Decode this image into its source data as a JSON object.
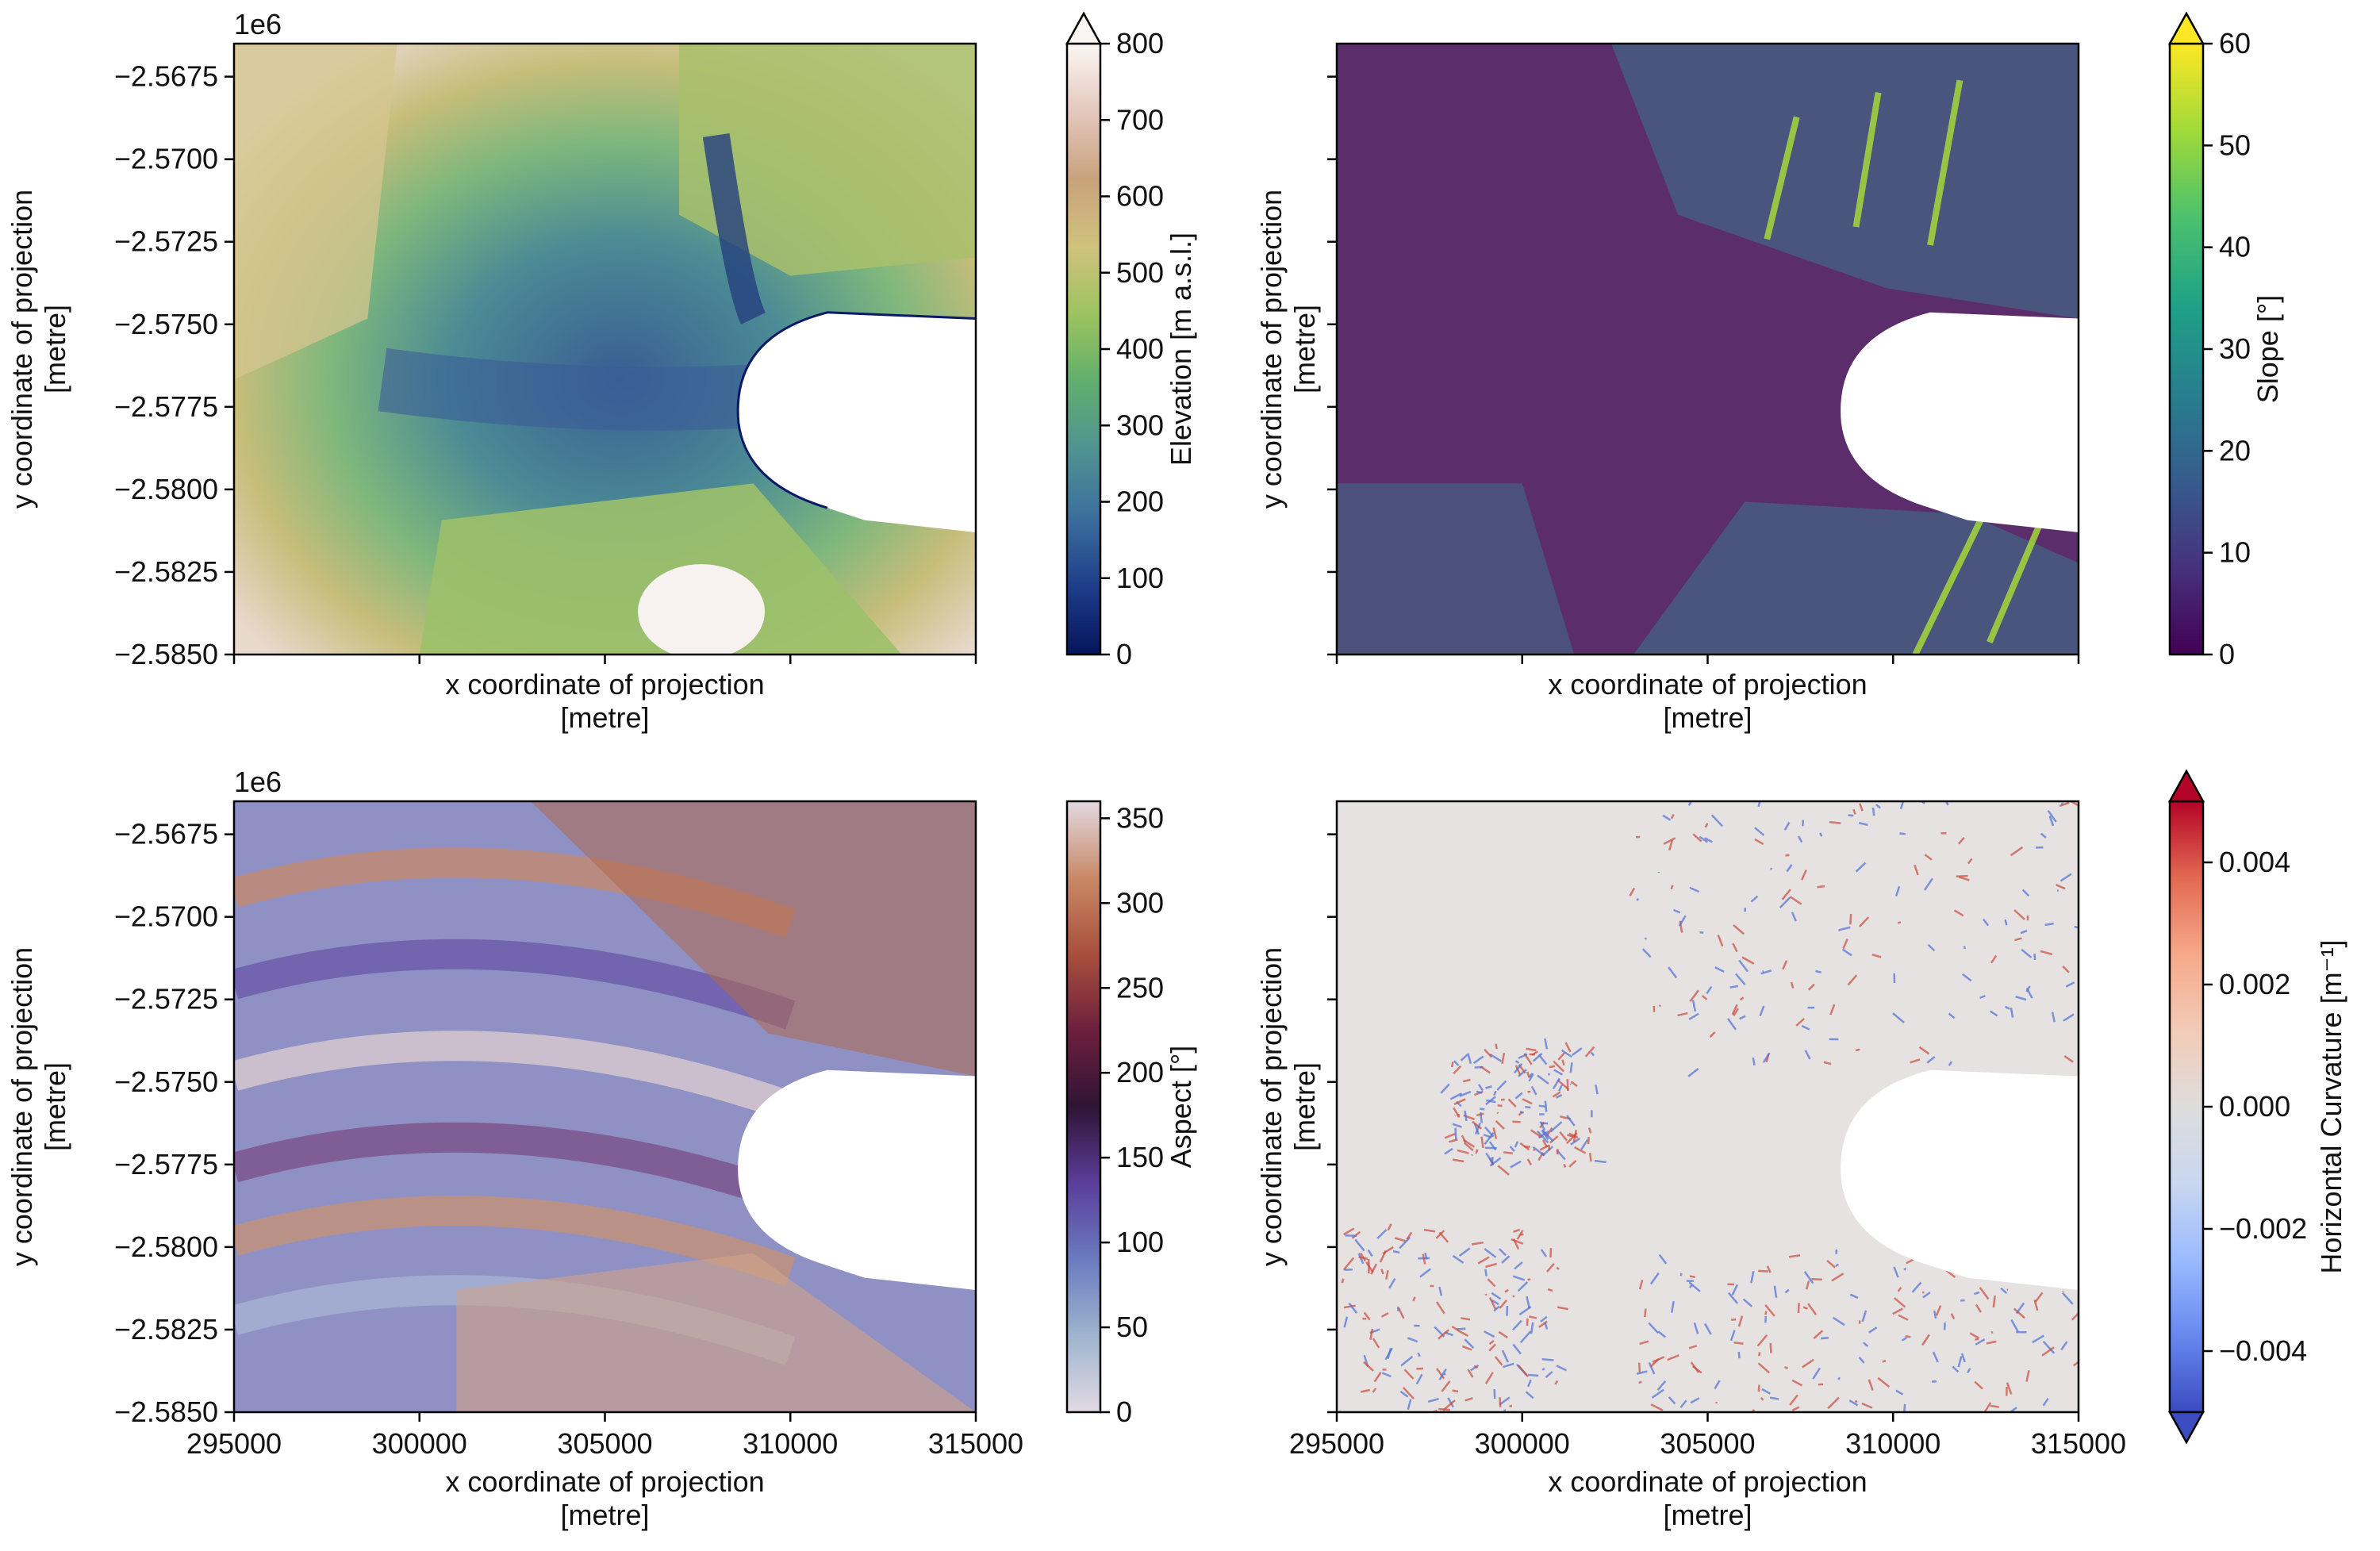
{
  "figure": {
    "exponent_label": "1e6"
  },
  "chart_data": [
    {
      "type": "heatmap",
      "name": "elevation",
      "panel": "top-left",
      "xlabel": "x coordinate of projection\n[metre]",
      "ylabel": "y coordinate of projection\n[metre]",
      "xlim": [
        295000,
        315000
      ],
      "ylim": [
        -2585000,
        -2566500
      ],
      "xticks": [
        295000,
        300000,
        305000,
        310000,
        315000
      ],
      "xtick_labels_visible": false,
      "yticks": [
        -2585000,
        -2582500,
        -2580000,
        -2577500,
        -2575000,
        -2572500,
        -2570000,
        -2567500
      ],
      "ytick_labels": [
        "−2.5850",
        "−2.5825",
        "−2.5800",
        "−2.5775",
        "−2.5750",
        "−2.5725",
        "−2.5700",
        "−2.5675"
      ],
      "ytick_labels_visible": true,
      "offset_label": "1e6",
      "colorbar": {
        "label": "Elevation [m a.s.l.]",
        "range": [
          0,
          800
        ],
        "ticks": [
          0,
          100,
          200,
          300,
          400,
          500,
          600,
          700,
          800
        ],
        "extend": "max",
        "colors": [
          "#05155c",
          "#1e3d8a",
          "#3c6e9c",
          "#4f9293",
          "#5fae6e",
          "#9cc35f",
          "#d0c27c",
          "#c9a27c",
          "#e4c8bd",
          "#fbf6f4"
        ]
      }
    },
    {
      "type": "heatmap",
      "name": "slope",
      "panel": "top-right",
      "xlabel": "x coordinate of projection\n[metre]",
      "ylabel": "y coordinate of projection\n[metre]",
      "xlim": [
        295000,
        315000
      ],
      "ylim": [
        -2585000,
        -2566500
      ],
      "xticks": [
        295000,
        300000,
        305000,
        310000,
        315000
      ],
      "xtick_labels_visible": false,
      "yticks": [
        -2585000,
        -2582500,
        -2580000,
        -2577500,
        -2575000,
        -2572500,
        -2570000,
        -2567500
      ],
      "ytick_labels_visible": false,
      "colorbar": {
        "label": "Slope [°]",
        "range": [
          0,
          60
        ],
        "ticks": [
          0,
          10,
          20,
          30,
          40,
          50,
          60
        ],
        "extend": "max",
        "colors": [
          "#440154",
          "#46327e",
          "#365c8d",
          "#277f8e",
          "#1fa187",
          "#4ac16d",
          "#a0da39",
          "#fde725"
        ]
      }
    },
    {
      "type": "heatmap",
      "name": "aspect",
      "panel": "bottom-left",
      "xlabel": "x coordinate of projection\n[metre]",
      "ylabel": "y coordinate of projection\n[metre]",
      "xlim": [
        295000,
        315000
      ],
      "ylim": [
        -2585000,
        -2566500
      ],
      "xticks": [
        295000,
        300000,
        305000,
        310000,
        315000
      ],
      "xtick_labels": [
        "295000",
        "300000",
        "305000",
        "310000",
        "315000"
      ],
      "xtick_labels_visible": true,
      "yticks": [
        -2585000,
        -2582500,
        -2580000,
        -2577500,
        -2575000,
        -2572500,
        -2570000,
        -2567500
      ],
      "ytick_labels": [
        "−2.5850",
        "−2.5825",
        "−2.5800",
        "−2.5775",
        "−2.5750",
        "−2.5725",
        "−2.5700",
        "−2.5675"
      ],
      "ytick_labels_visible": true,
      "offset_label": "1e6",
      "colorbar": {
        "label": "Aspect [°]",
        "range": [
          0,
          360
        ],
        "ticks": [
          0,
          50,
          100,
          150,
          200,
          250,
          300,
          350
        ],
        "extend": "neither",
        "colors": [
          "#e2d9e2",
          "#9fb4cf",
          "#6a7bc0",
          "#5b3e9b",
          "#2f1435",
          "#6e1f3e",
          "#a9503d",
          "#c98967",
          "#e2d9e2"
        ]
      }
    },
    {
      "type": "heatmap",
      "name": "horizontal-curvature",
      "panel": "bottom-right",
      "xlabel": "x coordinate of projection\n[metre]",
      "ylabel": "y coordinate of projection\n[metre]",
      "xlim": [
        295000,
        315000
      ],
      "ylim": [
        -2585000,
        -2566500
      ],
      "xticks": [
        295000,
        300000,
        305000,
        310000,
        315000
      ],
      "xtick_labels": [
        "295000",
        "300000",
        "305000",
        "310000",
        "315000"
      ],
      "xtick_labels_visible": true,
      "yticks": [
        -2585000,
        -2582500,
        -2580000,
        -2577500,
        -2575000,
        -2572500,
        -2570000,
        -2567500
      ],
      "ytick_labels_visible": false,
      "colorbar": {
        "label": "Horizontal Curvature [m⁻¹]",
        "range": [
          -0.005,
          0.005
        ],
        "ticks": [
          -0.004,
          -0.002,
          0.0,
          0.002,
          0.004
        ],
        "tick_labels": [
          "−0.004",
          "−0.002",
          "0.000",
          "0.002",
          "0.004"
        ],
        "extend": "both",
        "colors": [
          "#3b4cc0",
          "#6788ee",
          "#9abbff",
          "#c9d7f0",
          "#dddcdc",
          "#f2cbb7",
          "#f7a889",
          "#e26952",
          "#b40426"
        ]
      }
    }
  ]
}
